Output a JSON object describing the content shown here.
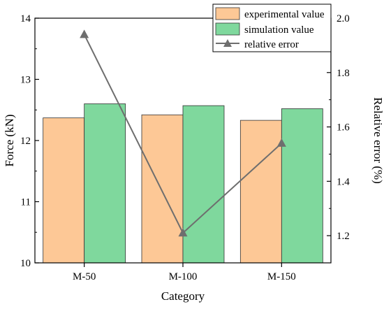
{
  "chart_data": {
    "type": "bar",
    "categories": [
      "M-50",
      "M-100",
      "M-150"
    ],
    "xlabel": "Category",
    "ylabel": "Force (kN)",
    "y2label": "Relative error (%)",
    "ylim": [
      10,
      14
    ],
    "y2lim": [
      1.1,
      2.0
    ],
    "yticks": [
      "10",
      "11",
      "12",
      "13",
      "14"
    ],
    "y2ticks": [
      "1.2",
      "1.4",
      "1.6",
      "1.8",
      "2.0"
    ],
    "series": [
      {
        "name": "experimental value",
        "type": "bar",
        "axis": "left",
        "color": "#fdc896",
        "values": [
          12.37,
          12.42,
          12.33
        ]
      },
      {
        "name": "simulation value",
        "type": "bar",
        "axis": "left",
        "color": "#7fd89d",
        "values": [
          12.6,
          12.57,
          12.52
        ]
      },
      {
        "name": "relative error",
        "type": "line",
        "axis": "right",
        "color": "#6e6e6e",
        "marker": "triangle",
        "values": [
          1.94,
          1.21,
          1.54
        ]
      }
    ],
    "legend_position": "top-right",
    "grid": false
  }
}
